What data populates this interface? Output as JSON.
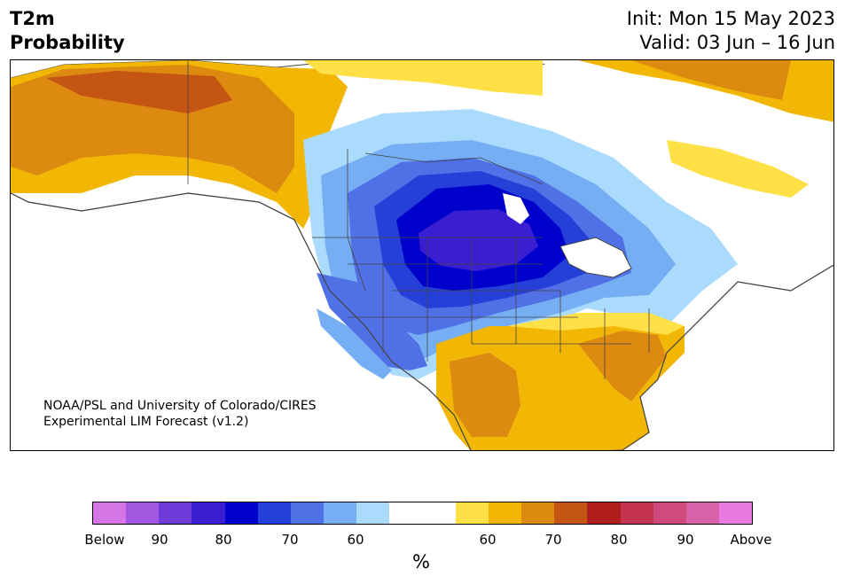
{
  "header": {
    "title_line1": "T2m",
    "title_line2": "Probability",
    "init": "Init: Mon 15 May 2023",
    "valid": "Valid: 03 Jun – 16 Jun"
  },
  "credit": {
    "line1": "NOAA/PSL and University of Colorado/CIRES",
    "line2": "Experimental LIM Forecast (v1.2)"
  },
  "colorbar": {
    "colors": [
      "#d675e6",
      "#a356e0",
      "#6d3bd8",
      "#3a1ed1",
      "#0000cc",
      "#2540d8",
      "#5070e6",
      "#75aef2",
      "#aadbfc",
      "#ffffff",
      "#ffffff",
      "#ffe047",
      "#f2b705",
      "#dd8a10",
      "#c45512",
      "#b01e1e",
      "#c43450",
      "#d04a7d",
      "#d963a8",
      "#e97ae0"
    ],
    "ticks": [
      "Below",
      "90",
      "80",
      "70",
      "60",
      "60",
      "70",
      "80",
      "90",
      "Above"
    ],
    "unit": "%"
  },
  "map": {
    "colors": {
      "ocean": "#ffffff",
      "land_white": "#ffffff",
      "border": "#444444"
    }
  }
}
